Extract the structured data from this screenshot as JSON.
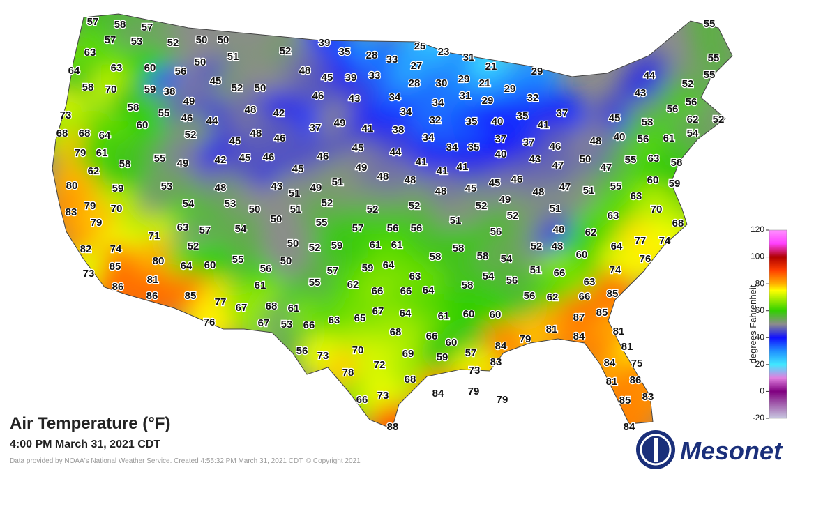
{
  "map": {
    "title": "Air Temperature (°F)",
    "subtitle": "4:00 PM March 31, 2021 CDT",
    "credit": "Data provided by NOAA's National Weather Service. Created 4:55:32 PM March 31, 2021 CDT. © Copyright 2021",
    "stations": [
      57,
      58,
      57,
      55,
      57,
      53,
      52,
      50,
      50,
      39,
      25,
      23,
      55,
      63,
      51,
      52,
      35,
      28,
      33,
      31,
      21,
      29,
      55,
      64,
      63,
      60,
      56,
      50,
      48,
      45,
      39,
      33,
      27,
      29,
      44,
      58,
      70,
      59,
      38,
      45,
      52,
      50,
      46,
      43,
      34,
      28,
      30,
      21,
      29,
      52,
      43,
      49,
      58,
      34,
      34,
      31,
      29,
      32,
      56,
      56,
      73,
      55,
      46,
      44,
      48,
      42,
      35,
      37,
      45,
      53,
      62,
      52,
      60,
      37,
      49,
      41,
      38,
      32,
      35,
      40,
      41,
      68,
      68,
      64,
      52,
      45,
      48,
      46,
      34,
      37,
      40,
      56,
      61,
      54,
      48,
      79,
      61,
      45,
      44,
      34,
      35,
      37,
      46,
      40,
      55,
      49,
      42,
      45,
      46,
      46,
      41,
      43,
      50,
      47,
      55,
      63,
      58,
      58,
      62,
      49,
      48,
      48,
      41,
      41,
      45,
      47,
      80,
      53,
      48,
      43,
      51,
      49,
      51,
      45,
      45,
      46,
      48,
      47,
      51,
      55,
      60,
      59,
      48,
      59,
      63,
      79,
      54,
      53,
      50,
      51,
      52,
      52,
      52,
      52,
      49,
      51,
      70,
      83,
      70,
      79,
      50,
      55,
      63,
      51,
      52,
      68,
      63,
      57,
      54,
      57,
      56,
      56,
      56,
      48,
      62,
      71,
      52,
      50,
      52,
      59,
      61,
      61,
      58,
      52,
      43,
      64,
      77,
      74,
      82,
      74,
      58,
      58,
      54,
      60,
      76,
      80,
      55,
      56,
      50,
      85,
      64,
      60,
      57,
      59,
      64,
      51,
      66,
      74,
      73,
      63,
      54,
      56,
      81,
      61,
      55,
      62,
      66,
      66,
      64,
      58,
      63,
      86,
      86,
      85,
      77,
      67,
      68,
      61,
      56,
      62,
      66,
      85,
      67,
      64,
      61,
      60,
      60,
      76,
      67,
      53,
      66,
      63,
      65,
      87,
      85,
      68,
      81,
      84,
      81,
      66,
      79,
      60,
      84,
      81,
      56,
      73,
      70,
      69,
      57,
      59,
      83,
      84,
      75,
      78,
      72,
      73,
      86,
      81,
      68,
      84,
      79,
      79,
      85,
      83,
      66,
      73,
      88,
      84
    ]
  },
  "legend": {
    "label": "degrees Fahrenheit",
    "ticks": [
      120,
      100,
      80,
      60,
      40,
      20,
      0,
      -20
    ]
  },
  "logo": "Mesonet"
}
